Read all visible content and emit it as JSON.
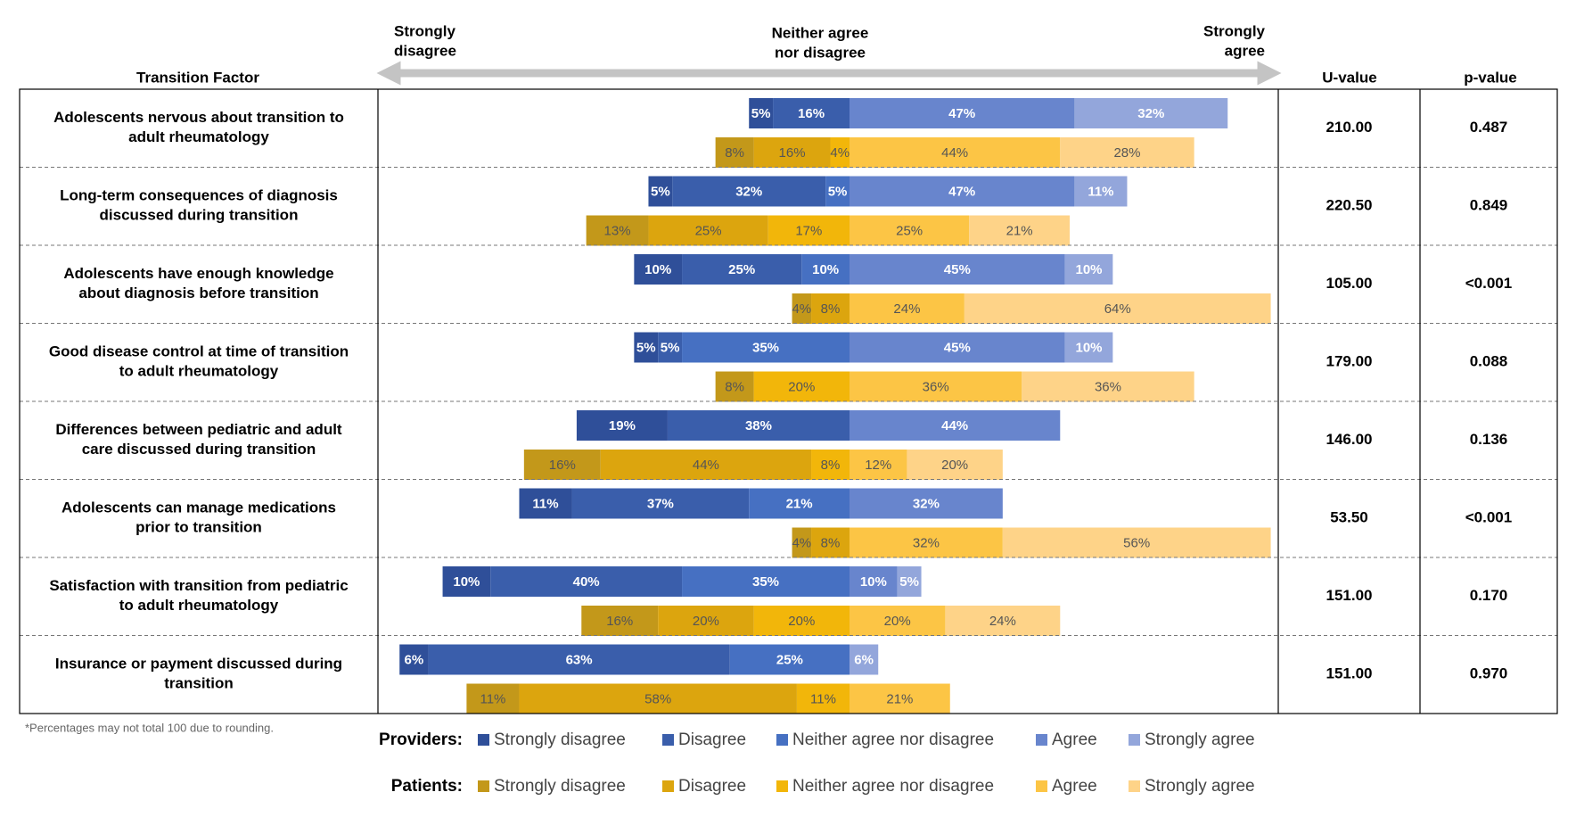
{
  "chart_data": {
    "type": "diverging_bar",
    "factor_header": "Transition Factor",
    "u_header": "U-value",
    "p_header": "p-value",
    "scale_labels": {
      "left": [
        "Strongly",
        "disagree"
      ],
      "center": [
        "Neither agree",
        "nor disagree"
      ],
      "right": [
        "Strongly",
        "agree"
      ]
    },
    "categories": [
      [
        "Adolescents nervous about transition to",
        "adult rheumatology"
      ],
      [
        "Long-term consequences of diagnosis",
        "discussed during transition"
      ],
      [
        "Adolescents have enough knowledge",
        "about diagnosis before transition"
      ],
      [
        "Good disease control at time of transition",
        "to adult rheumatology"
      ],
      [
        "Differences between pediatric and adult",
        "care discussed during transition"
      ],
      [
        "Adolescents can manage medications",
        "prior to transition"
      ],
      [
        "Satisfaction with transition from pediatric",
        "to adult rheumatology"
      ],
      [
        "Insurance or payment discussed during",
        "transition"
      ]
    ],
    "u_values": [
      "210.00",
      "220.50",
      "105.00",
      "179.00",
      "146.00",
      "53.50",
      "151.00",
      "151.00"
    ],
    "p_values": [
      "0.487",
      "0.849",
      "<0.001",
      "0.088",
      "0.136",
      "<0.001",
      "0.170",
      "0.970"
    ],
    "groups": [
      {
        "name": "Providers:",
        "label_color": "#ffffff",
        "series": [
          {
            "name": "Strongly disagree",
            "color": "#2f4f99",
            "values": [
              5,
              5,
              10,
              5,
              19,
              11,
              10,
              6
            ],
            "value_labels": [
              "5%",
              "5%",
              "10%",
              "5%",
              "19%",
              "11%",
              "10%",
              "6%"
            ]
          },
          {
            "name": "Disagree",
            "color": "#3a5eab",
            "values": [
              16,
              32,
              25,
              5,
              38,
              37,
              40,
              63
            ],
            "value_labels": [
              "16%",
              "32%",
              "25%",
              "5%",
              "38%",
              "37%",
              "40%",
              "63%"
            ]
          },
          {
            "name": "Neither agree nor disagree",
            "color": "#4670c2",
            "values": [
              null,
              5,
              10,
              35,
              null,
              21,
              35,
              25
            ],
            "value_labels": [
              null,
              "5%",
              "10%",
              "35%",
              null,
              "21%",
              "35%",
              "25%"
            ]
          },
          {
            "name": "Agree",
            "color": "#6885cd",
            "values": [
              47,
              47,
              45,
              45,
              44,
              32,
              10,
              null
            ],
            "value_labels": [
              "47%",
              "47%",
              "45%",
              "45%",
              "44%",
              "32%",
              "10%",
              null
            ]
          },
          {
            "name": "Strongly agree",
            "color": "#93a6db",
            "values": [
              32,
              11,
              10,
              10,
              null,
              null,
              5,
              6
            ],
            "value_labels": [
              "32%",
              "11%",
              "10%",
              "10%",
              null,
              null,
              "5%",
              "6%"
            ]
          }
        ]
      },
      {
        "name": "Patients:",
        "label_color": "#555555",
        "series": [
          {
            "name": "Strongly disagree",
            "color": "#c3981a",
            "values": [
              8,
              13,
              4,
              8,
              16,
              4,
              16,
              11
            ],
            "value_labels": [
              "8%",
              "13%",
              "4%",
              "8%",
              "16%",
              "4%",
              "16%",
              "11%"
            ]
          },
          {
            "name": "Disagree",
            "color": "#dca50e",
            "values": [
              16,
              25,
              8,
              null,
              44,
              8,
              20,
              58
            ],
            "value_labels": [
              "16%",
              "25%",
              "8%",
              null,
              "44%",
              "8%",
              "20%",
              "58%"
            ]
          },
          {
            "name": "Neither agree nor disagree",
            "color": "#f2b60a",
            "values": [
              4,
              17,
              null,
              20,
              8,
              null,
              20,
              11
            ],
            "value_labels": [
              "4%",
              "17%",
              null,
              "20%",
              "8%",
              null,
              "20%",
              "11%"
            ]
          },
          {
            "name": "Agree",
            "color": "#fcc545",
            "values": [
              44,
              25,
              24,
              36,
              12,
              32,
              20,
              21
            ],
            "value_labels": [
              "44%",
              "25%",
              "24%",
              "36%",
              "12%",
              "32%",
              "20%",
              "21%"
            ]
          },
          {
            "name": "Strongly agree",
            "color": "#fed388",
            "values": [
              28,
              21,
              64,
              36,
              20,
              56,
              24,
              null
            ],
            "value_labels": [
              "28%",
              "21%",
              "64%",
              "36%",
              "20%",
              "56%",
              "24%",
              null
            ]
          }
        ]
      }
    ],
    "footnote": "*Percentages may not total 100 due to rounding."
  }
}
